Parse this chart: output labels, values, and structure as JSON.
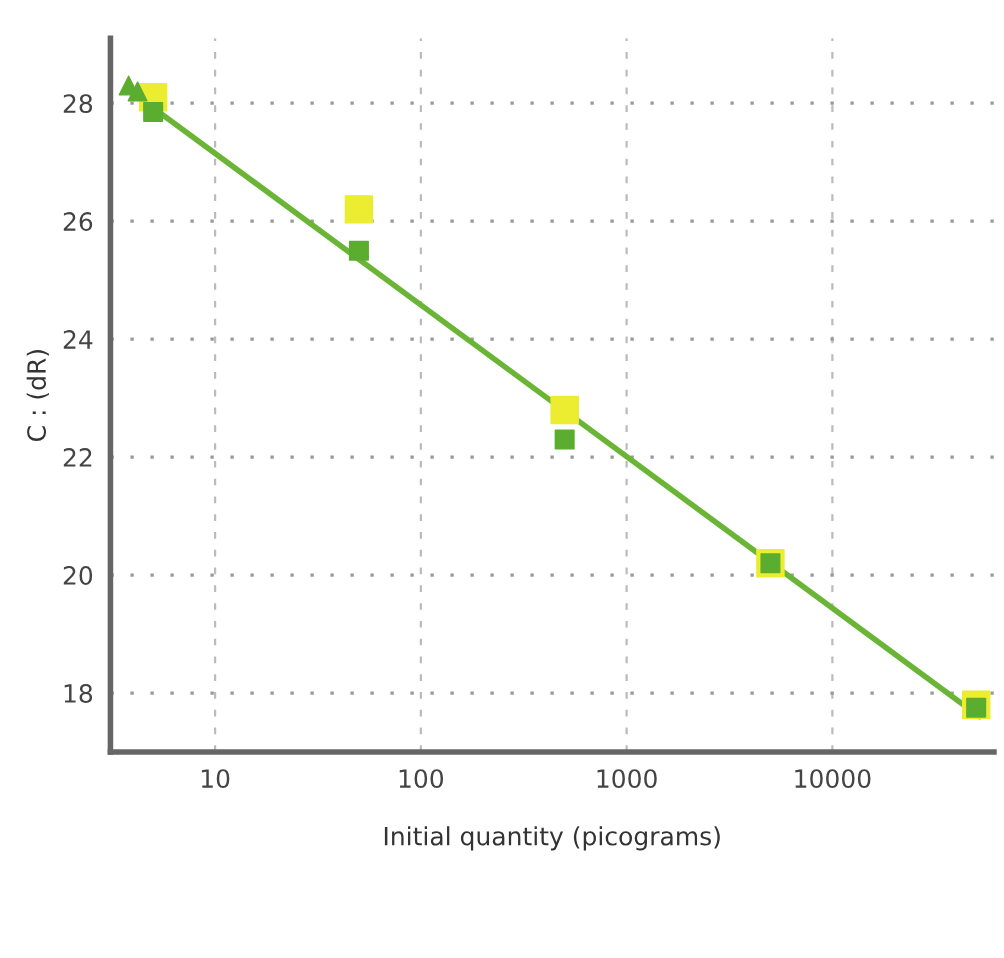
{
  "chart_data": {
    "type": "scatter",
    "xlabel": "Initial quantity (picograms)",
    "ylabel": "C : (dR)",
    "log": "x",
    "xlim": [
      3.1,
      61000
    ],
    "xticks": [
      10,
      100,
      1000,
      10000
    ],
    "ylim": [
      17,
      29.1
    ],
    "yticks": [
      18,
      20,
      22,
      24,
      26,
      28
    ],
    "grid": true,
    "series": [
      {
        "marker": "square",
        "color": "#ecec30",
        "x": [
          5,
          50,
          500,
          5000,
          50000
        ],
        "values": [
          28.1,
          26.2,
          22.8,
          20.2,
          17.8
        ]
      },
      {
        "marker": "square",
        "color": "#5aad2e",
        "x": [
          5,
          50,
          500,
          5000,
          50000
        ],
        "values": [
          27.85,
          25.5,
          22.3,
          20.2,
          17.75
        ]
      },
      {
        "marker": "triangle",
        "color": "#5aad2e",
        "x": [
          3.8,
          4.2
        ],
        "values": [
          28.3,
          28.2
        ]
      },
      {
        "type": "line",
        "marker": "none",
        "color": "#6ab536",
        "x": [
          3.9,
          52000
        ],
        "values": [
          28.2,
          17.6
        ]
      }
    ]
  }
}
